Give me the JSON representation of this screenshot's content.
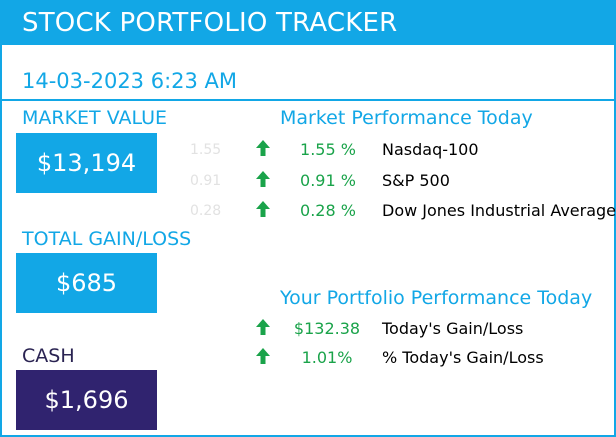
{
  "header": {
    "title": "STOCK PORTFOLIO TRACKER"
  },
  "timestamp": "14-03-2023 6:23 AM",
  "cards": {
    "market_value": {
      "label": "MARKET VALUE",
      "value": "$13,194"
    },
    "total_gain_loss": {
      "label": "TOTAL GAIN/LOSS",
      "value": "$685"
    },
    "cash": {
      "label": "CASH",
      "value": "$1,696"
    }
  },
  "market_performance": {
    "heading": "Market Performance Today",
    "rows": [
      {
        "ghost": "1.55",
        "pct": "1.55 %",
        "name": "Nasdaq-100"
      },
      {
        "ghost": "0.91",
        "pct": "0.91 %",
        "name": "S&P 500"
      },
      {
        "ghost": "0.28",
        "pct": "0.28 %",
        "name": "Dow Jones Industrial Average"
      }
    ]
  },
  "portfolio_performance": {
    "heading": "Your Portfolio Performance Today",
    "rows": [
      {
        "value": "$132.38",
        "name": "Today's Gain/Loss"
      },
      {
        "value": "1.01%",
        "name": "% Today's Gain/Loss"
      }
    ]
  },
  "colors": {
    "accent": "#12a7e6",
    "cash_box": "#30236f",
    "positive": "#1aa34a"
  },
  "icons": {
    "up": "arrow-up-icon"
  }
}
